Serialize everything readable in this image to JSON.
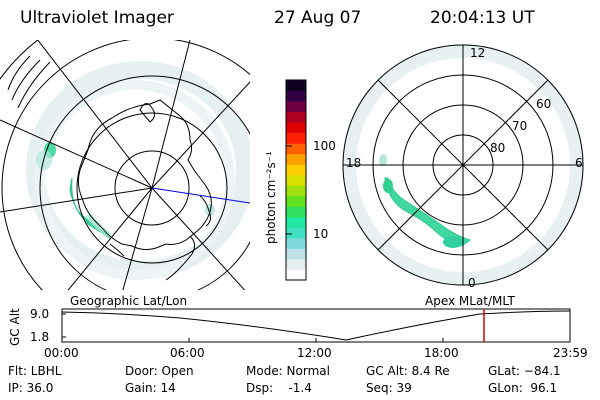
{
  "header": {
    "title": "Ultraviolet Imager",
    "date": "27 Aug 07",
    "time": "20:04:13 UT"
  },
  "colorbar": {
    "unit_label": "photon cm⁻²s⁻¹",
    "ticks": [
      "100",
      "10"
    ],
    "colors": [
      "#ffffff",
      "#e6eef2",
      "#bfe0e8",
      "#80d8dc",
      "#40e0c0",
      "#20e8a0",
      "#30e060",
      "#60e020",
      "#a0e010",
      "#d8e000",
      "#ffd000",
      "#ffa000",
      "#ff6000",
      "#ff2000",
      "#e00000",
      "#b00020",
      "#700040",
      "#300040",
      "#100020"
    ]
  },
  "left_map": {
    "label": "Geographic Lat/Lon"
  },
  "right_map": {
    "label": "Apex  MLat/MLT",
    "mlt_labels": {
      "top": "12",
      "left": "18",
      "right": "6",
      "bottom": "0"
    },
    "lat_labels": [
      "60",
      "70",
      "80"
    ]
  },
  "timeline": {
    "ylabel": "GC Alt",
    "yticks": [
      "9.0",
      "1.8"
    ],
    "xticks": [
      "00:00",
      "06:00",
      "12:00",
      "18:00",
      "23:59"
    ],
    "marker_color": "#e00000"
  },
  "info": {
    "flt": "Flt: LBHL",
    "ip": "IP: 36.0",
    "door": "Door: Open",
    "gain": "Gain: 14",
    "mode": "Mode: Normal",
    "dsp": "Dsp:    -1.4",
    "gcalt": "GC Alt: 8.4 Re",
    "seq": "Seq: 39",
    "glat": "GLat: −84.1",
    "glon": "GLon:  96.1"
  }
}
